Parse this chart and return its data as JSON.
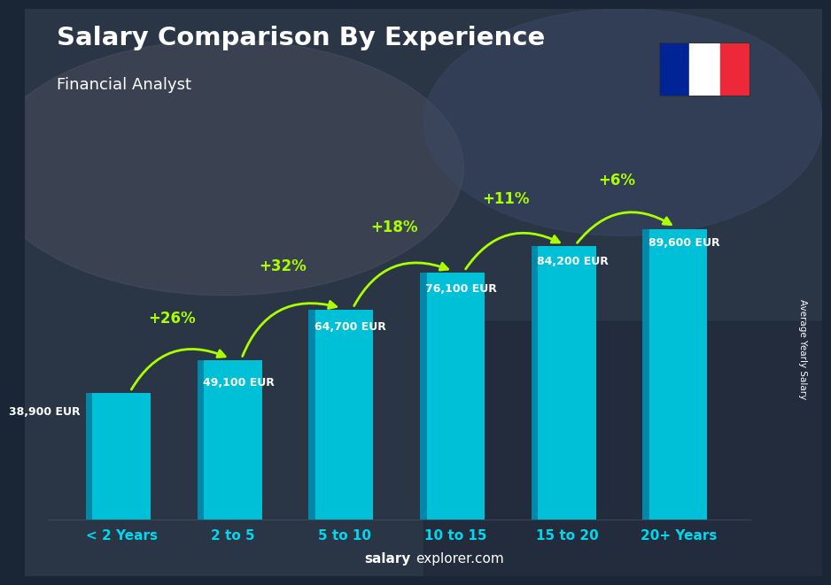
{
  "title": "Salary Comparison By Experience",
  "subtitle": "Financial Analyst",
  "categories": [
    "< 2 Years",
    "2 to 5",
    "5 to 10",
    "10 to 15",
    "15 to 20",
    "20+ Years"
  ],
  "values": [
    38900,
    49100,
    64700,
    76100,
    84200,
    89600
  ],
  "labels": [
    "38,900 EUR",
    "49,100 EUR",
    "64,700 EUR",
    "76,100 EUR",
    "84,200 EUR",
    "89,600 EUR"
  ],
  "pct_changes": [
    "+26%",
    "+32%",
    "+18%",
    "+11%",
    "+6%"
  ],
  "bar_color_face": "#00c0d8",
  "bar_color_left": "#0088aa",
  "bar_color_top": "#88eaf8",
  "title_color": "#ffffff",
  "label_color": "#ffffff",
  "pct_color": "#aaff00",
  "footer_bold": "salary",
  "footer_rest": "explorer.com",
  "ylabel_text": "Average Yearly Salary",
  "ylim": [
    0,
    105000
  ],
  "bar_width": 0.52,
  "flag_colors": [
    "#002395",
    "#ffffff",
    "#ED2939"
  ],
  "bg_dark": "#1a2535",
  "spine_color": "#445566"
}
